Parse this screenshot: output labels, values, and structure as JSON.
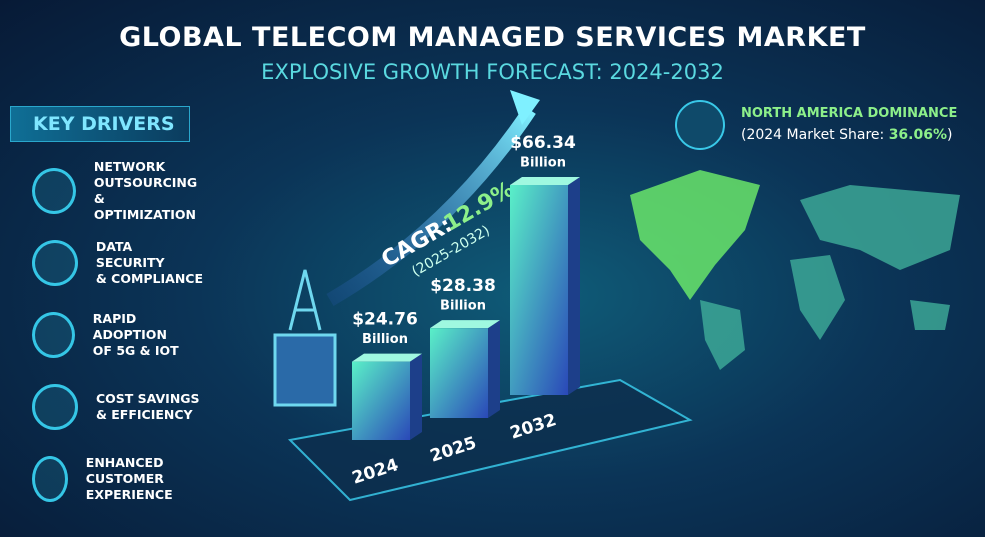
{
  "title": "GLOBAL TELECOM MANAGED SERVICES MARKET",
  "subtitle": "EXPLOSIVE GROWTH FORECAST: 2024-2032",
  "key_drivers": {
    "heading": "KEY DRIVERS",
    "items": [
      {
        "lines": [
          "NETWORK",
          "OUTSOURCING",
          "& OPTIMIZATION"
        ]
      },
      {
        "lines": [
          "DATA SECURITY",
          "& COMPLIANCE"
        ]
      },
      {
        "lines": [
          "RAPID ADOPTION",
          "OF 5G & IOT"
        ]
      },
      {
        "lines": [
          "COST SAVINGS",
          "& EFFICIENCY"
        ]
      },
      {
        "lines": [
          "ENHANCED CUSTOMER",
          "EXPERIENCE"
        ]
      }
    ]
  },
  "cagr": {
    "label": "CAGR:",
    "value": "12.9%",
    "period": "(2025-2032)"
  },
  "region": {
    "title": "NORTH AMERICA DOMINANCE",
    "share_prefix": "(2024 Market Share:",
    "share_value": "36.06%",
    "share_suffix": ")"
  },
  "chart_data": {
    "type": "bar",
    "categories": [
      "2024",
      "2025",
      "2032"
    ],
    "values": [
      24.76,
      28.38,
      66.34
    ],
    "value_labels": [
      "$24.76",
      "$28.38",
      "$66.34"
    ],
    "unit_label": "Billion",
    "color": "#2fd6b8"
  }
}
